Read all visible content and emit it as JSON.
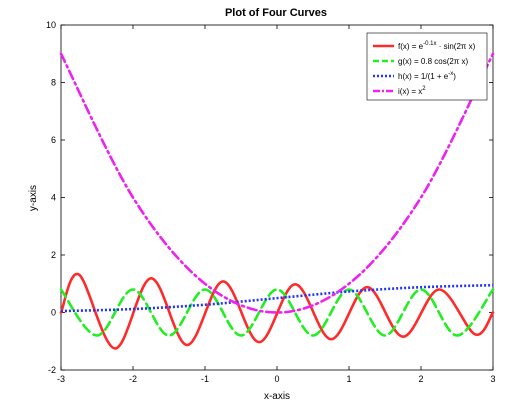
{
  "chart_data": {
    "type": "line",
    "title": "Plot of Four Curves",
    "xlabel": "x-axis",
    "ylabel": "y-axis",
    "xlim": [
      -3,
      3
    ],
    "ylim": [
      -2,
      10
    ],
    "x_ticks": [
      "-3",
      "-2",
      "-1",
      "0",
      "1",
      "2",
      "3"
    ],
    "y_ticks": [
      "-2",
      "0",
      "2",
      "4",
      "6",
      "8",
      "10"
    ],
    "grid": false,
    "legend_position": "top-right",
    "series": [
      {
        "name_main": "f(x) = e",
        "name_sup": "-0.1x",
        "name_tail": " · sin(2π x)",
        "color": "#ff2a2a",
        "style": "solid",
        "x": [
          -3.0,
          -2.75,
          -2.25,
          -1.75,
          -1.25,
          -0.75,
          -0.25,
          0.25,
          0.75,
          1.25,
          1.75,
          2.25,
          2.75,
          3.0
        ],
        "y": [
          0.0,
          1.32,
          -1.25,
          1.19,
          -1.13,
          1.08,
          -1.03,
          0.98,
          -0.93,
          0.88,
          -0.84,
          0.8,
          -0.76,
          0.0
        ]
      },
      {
        "name_main": "g(x) = 0.8 cos(2π x)",
        "name_sup": "",
        "name_tail": "",
        "color": "#22ee22",
        "style": "dashed",
        "x": [
          -3.0,
          -2.5,
          -2.0,
          -1.5,
          -1.0,
          -0.5,
          0.0,
          0.5,
          1.0,
          1.5,
          2.0,
          2.5,
          3.0
        ],
        "y": [
          0.8,
          -0.8,
          0.8,
          -0.8,
          0.8,
          -0.8,
          0.8,
          -0.8,
          0.8,
          -0.8,
          0.8,
          -0.8,
          0.8
        ]
      },
      {
        "name_main": "h(x) = 1/(1 + e",
        "name_sup": "-x",
        "name_tail": ")",
        "color": "#2233ff",
        "style": "dotted",
        "x": [
          -3.0,
          -2.0,
          -1.0,
          0.0,
          1.0,
          2.0,
          3.0
        ],
        "y": [
          0.05,
          0.12,
          0.27,
          0.5,
          0.73,
          0.88,
          0.95
        ]
      },
      {
        "name_main": "i(x) = x",
        "name_sup": "2",
        "name_tail": "",
        "color": "#ee22ee",
        "style": "dashdot",
        "x": [
          -3.0,
          -2.0,
          -1.0,
          0.0,
          1.0,
          2.0,
          3.0
        ],
        "y": [
          9.0,
          4.0,
          1.0,
          0.0,
          1.0,
          4.0,
          9.0
        ]
      }
    ]
  }
}
